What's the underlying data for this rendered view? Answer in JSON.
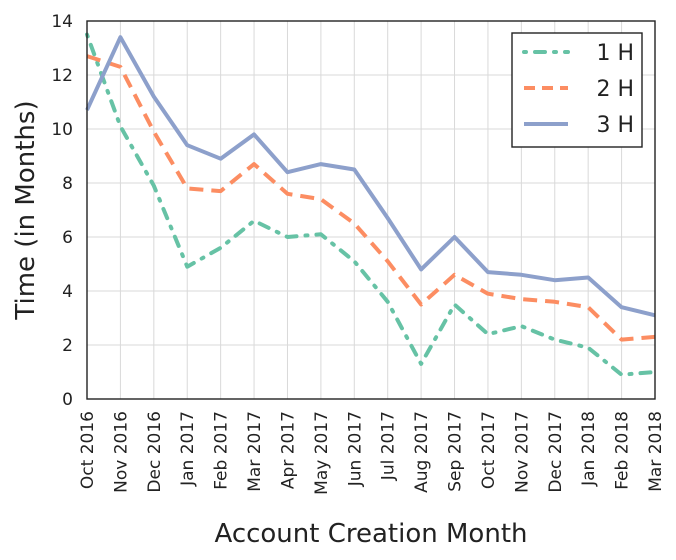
{
  "chart_data": {
    "type": "line",
    "title": "",
    "xlabel": "Account Creation Month",
    "ylabel": "Time (in Months)",
    "ylim": [
      0,
      14
    ],
    "yticks": [
      0,
      2,
      4,
      6,
      8,
      10,
      12,
      14
    ],
    "grid": true,
    "legend_position": "top-right",
    "categories": [
      "Oct 2016",
      "Nov 2016",
      "Dec 2016",
      "Jan 2017",
      "Feb 2017",
      "Mar 2017",
      "Apr 2017",
      "May 2017",
      "Jun 2017",
      "Jul 2017",
      "Aug 2017",
      "Sep 2017",
      "Oct 2017",
      "Nov 2017",
      "Dec 2017",
      "Jan 2018",
      "Feb 2018",
      "Mar 2018"
    ],
    "series": [
      {
        "name": "1 H",
        "color": "#66c2a5",
        "style": "dashdot",
        "values": [
          13.5,
          10.1,
          7.9,
          4.9,
          5.6,
          6.6,
          6.0,
          6.1,
          5.1,
          3.6,
          1.3,
          3.5,
          2.4,
          2.7,
          2.2,
          1.9,
          0.9,
          1.0
        ]
      },
      {
        "name": "2 H",
        "color": "#fc8d62",
        "style": "dashed",
        "values": [
          12.7,
          12.3,
          9.9,
          7.8,
          7.7,
          8.7,
          7.6,
          7.4,
          6.5,
          5.1,
          3.5,
          4.6,
          3.9,
          3.7,
          3.6,
          3.4,
          2.2,
          2.3
        ]
      },
      {
        "name": "3 H",
        "color": "#8da0cb",
        "style": "solid",
        "values": [
          10.7,
          13.4,
          11.2,
          9.4,
          8.9,
          9.8,
          8.4,
          8.7,
          8.5,
          6.7,
          4.8,
          6.0,
          4.7,
          4.6,
          4.4,
          4.5,
          3.4,
          3.1
        ]
      }
    ]
  }
}
